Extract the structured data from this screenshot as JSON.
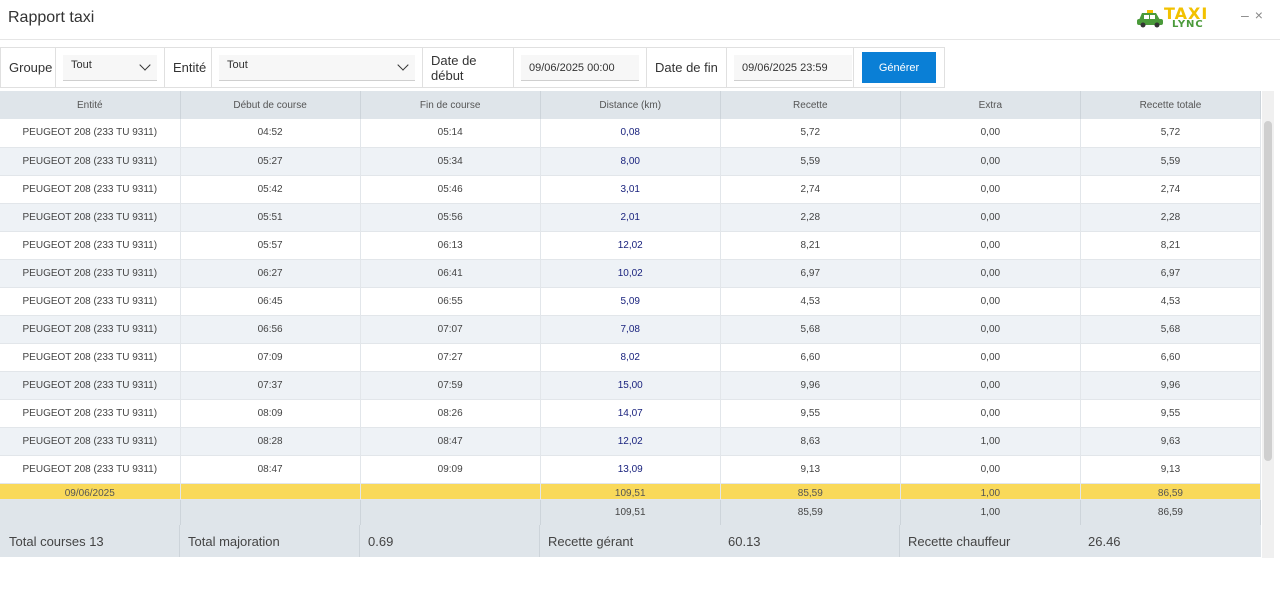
{
  "window": {
    "title": "Rapport taxi",
    "logo_top": "TAXI",
    "logo_bottom": "LYNC",
    "minimize": "–",
    "close": "×"
  },
  "filters": {
    "groupe_label": "Groupe",
    "groupe_value": "Tout",
    "entite_label": "Entité",
    "entite_value": "Tout",
    "date_debut_label": "Date de début",
    "date_debut_value": "09/06/2025 00:00",
    "date_fin_label": "Date de fin",
    "date_fin_value": "09/06/2025 23:59",
    "generate_label": "Générer"
  },
  "table": {
    "headers": [
      "Entité",
      "Début de course",
      "Fin de course",
      "Distance (km)",
      "Recette",
      "Extra",
      "Recette totale"
    ],
    "rows": [
      [
        "PEUGEOT 208 (233 TU 9311)",
        "04:52",
        "05:14",
        "0,08",
        "5,72",
        "0,00",
        "5,72"
      ],
      [
        "PEUGEOT 208 (233 TU 9311)",
        "05:27",
        "05:34",
        "8,00",
        "5,59",
        "0,00",
        "5,59"
      ],
      [
        "PEUGEOT 208 (233 TU 9311)",
        "05:42",
        "05:46",
        "3,01",
        "2,74",
        "0,00",
        "2,74"
      ],
      [
        "PEUGEOT 208 (233 TU 9311)",
        "05:51",
        "05:56",
        "2,01",
        "2,28",
        "0,00",
        "2,28"
      ],
      [
        "PEUGEOT 208 (233 TU 9311)",
        "05:57",
        "06:13",
        "12,02",
        "8,21",
        "0,00",
        "8,21"
      ],
      [
        "PEUGEOT 208 (233 TU 9311)",
        "06:27",
        "06:41",
        "10,02",
        "6,97",
        "0,00",
        "6,97"
      ],
      [
        "PEUGEOT 208 (233 TU 9311)",
        "06:45",
        "06:55",
        "5,09",
        "4,53",
        "0,00",
        "4,53"
      ],
      [
        "PEUGEOT 208 (233 TU 9311)",
        "06:56",
        "07:07",
        "7,08",
        "5,68",
        "0,00",
        "5,68"
      ],
      [
        "PEUGEOT 208 (233 TU 9311)",
        "07:09",
        "07:27",
        "8,02",
        "6,60",
        "0,00",
        "6,60"
      ],
      [
        "PEUGEOT 208 (233 TU 9311)",
        "07:37",
        "07:59",
        "15,00",
        "9,96",
        "0,00",
        "9,96"
      ],
      [
        "PEUGEOT 208 (233 TU 9311)",
        "08:09",
        "08:26",
        "14,07",
        "9,55",
        "0,00",
        "9,55"
      ],
      [
        "PEUGEOT 208 (233 TU 9311)",
        "08:28",
        "08:47",
        "12,02",
        "8,63",
        "1,00",
        "9,63"
      ],
      [
        "PEUGEOT 208 (233 TU 9311)",
        "08:47",
        "09:09",
        "13,09",
        "9,13",
        "0,00",
        "9,13"
      ]
    ],
    "summary": {
      "date": "09/06/2025",
      "distance": "109,51",
      "recette": "85,59",
      "extra": "1,00",
      "recette_totale": "86,59"
    },
    "totals": {
      "distance": "109,51",
      "recette": "85,59",
      "extra": "1,00",
      "recette_totale": "86,59"
    }
  },
  "footer": {
    "total_courses": "Total courses 13",
    "total_majoration_label": "Total majoration",
    "total_majoration_value": "0.69",
    "recette_gerant_label": "Recette gérant",
    "recette_gerant_value": "60.13",
    "recette_chauffeur_label": "Recette chauffeur",
    "recette_chauffeur_value": "26.46"
  },
  "colors": {
    "accent": "#0a7fd6",
    "summary_row": "#f9d95a",
    "header_bg": "#dfe5ea",
    "logo_yellow": "#f2c100",
    "logo_green": "#4a9a3a"
  }
}
